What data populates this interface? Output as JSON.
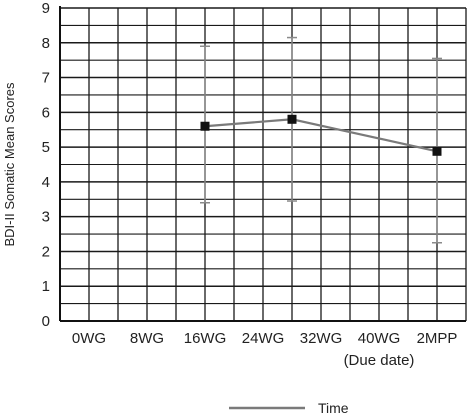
{
  "chart_data": {
    "type": "line",
    "title": "",
    "xlabel": "",
    "ylabel": "BDI-II Somatic Mean Scores",
    "ylim": [
      0,
      9
    ],
    "yticks": [
      0,
      1,
      2,
      3,
      4,
      5,
      6,
      7,
      8,
      9
    ],
    "grid": true,
    "legend_position": "bottom-center",
    "categories": [
      "0WG",
      "8WG",
      "16WG",
      "24WG",
      "32WG",
      "40WG",
      "2MPP"
    ],
    "category_notes": {
      "40WG": "(Due date)"
    },
    "series": [
      {
        "name": "Time",
        "color": "#7a7a7a",
        "marker": "square",
        "points": [
          {
            "x": "16WG",
            "y": 5.6,
            "err_low": 3.4,
            "err_high": 7.9
          },
          {
            "x": "28WG",
            "y": 5.8,
            "err_low": 3.45,
            "err_high": 8.15
          },
          {
            "x": "2MPP",
            "y": 4.88,
            "err_low": 2.25,
            "err_high": 7.55
          }
        ]
      }
    ]
  }
}
